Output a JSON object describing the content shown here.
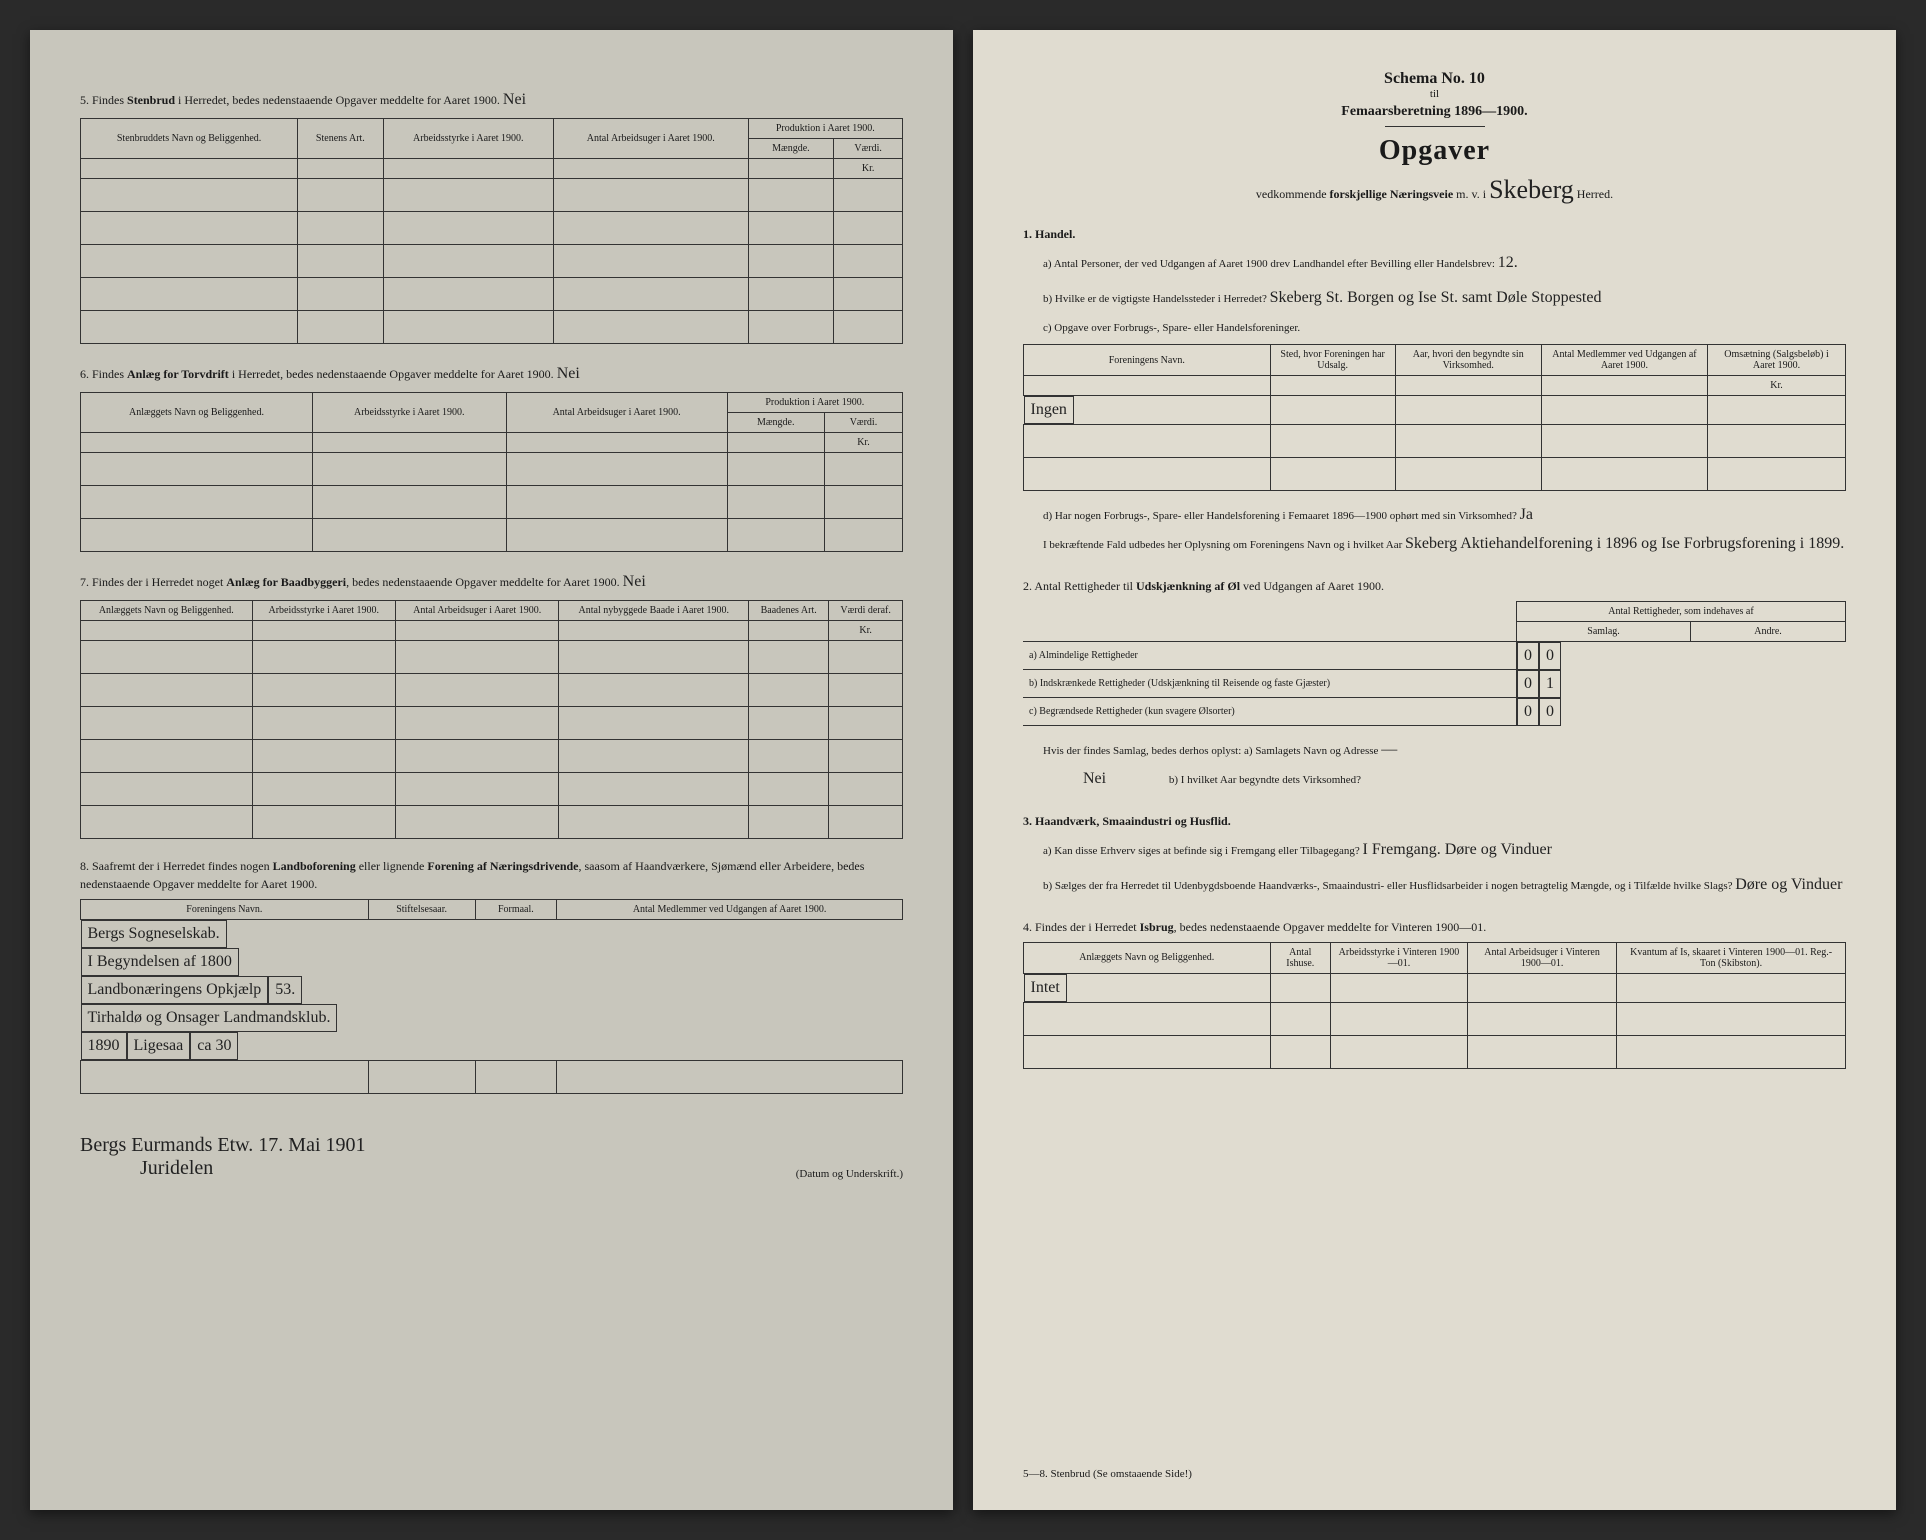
{
  "left": {
    "s5": {
      "text": "5.  Findes <b>Stenbrud</b> i Herredet, bedes nedenstaaende Opgaver meddelte for Aaret 1900.",
      "hand": "Nei",
      "tbl_sup": "Produktion i Aaret 1900.",
      "cols": [
        "Stenbruddets Navn og Beliggenhed.",
        "Stenens Art.",
        "Arbeidsstyrke i Aaret 1900.",
        "Antal Arbeidsuger i Aaret 1900.",
        "Mængde.",
        "Værdi."
      ],
      "unit": "Kr."
    },
    "s6": {
      "text": "6.  Findes <b>Anlæg for Torvdrift</b> i Herredet, bedes nedenstaaende Opgaver meddelte for Aaret 1900.",
      "hand": "Nei",
      "tbl_sup": "Produktion i Aaret 1900.",
      "cols": [
        "Anlæggets Navn og Beliggenhed.",
        "Arbeidsstyrke i Aaret 1900.",
        "Antal Arbeidsuger i Aaret 1900.",
        "Mængde.",
        "Værdi."
      ],
      "unit": "Kr."
    },
    "s7": {
      "text": "7.  Findes der i Herredet noget <b>Anlæg for Baadbyggeri</b>, bedes nedenstaaende Opgaver meddelte for Aaret 1900.",
      "hand": "Nei",
      "cols": [
        "Anlæggets Navn og Beliggenhed.",
        "Arbeidsstyrke i Aaret 1900.",
        "Antal Arbeidsuger i Aaret 1900.",
        "Antal nybyggede Baade i Aaret 1900.",
        "Baadenes Art.",
        "Værdi deraf."
      ],
      "unit": "Kr."
    },
    "s8": {
      "text": "8.  Saafremt der i Herredet findes nogen <b>Landboforening</b> eller lignende <b>Forening af Næringsdrivende</b>, saasom af Haandværkere, Sjømænd eller Arbeidere, bedes nedenstaaende Opgaver meddelte for Aaret 1900.",
      "cols": [
        "Foreningens Navn.",
        "Stiftelsesaar.",
        "Formaal.",
        "Antal Medlemmer ved Udgangen af Aaret 1900."
      ],
      "rows": [
        [
          "Bergs Sogneselskab.",
          "I Begyndelsen af 1800",
          "Landbonæringens Opkjælp",
          "53."
        ],
        [
          "Tirhaldø og Onsager Landmandsklub.",
          "1890",
          "Ligesaa",
          "ca 30"
        ]
      ]
    },
    "sig_left": "Bergs Eurmands Etw. 17. Mai 1901",
    "sig_left2": "Juridelen",
    "sig_right": "(Datum og Underskrift.)"
  },
  "right": {
    "schema": "Schema No. 10",
    "til": "til",
    "period": "Femaarsberetning 1896—1900.",
    "opgaver": "Opgaver",
    "sub": "vedkommende <b>forskjellige Næringsveie</b> m. v. i",
    "herred_hand": "Skeberg",
    "herred_suffix": "Herred.",
    "s1": {
      "title": "1.  Handel.",
      "a": "a)  Antal Personer, der ved Udgangen af Aaret 1900 drev Landhandel efter Bevilling eller Handelsbrev:",
      "a_hand": "12.",
      "b": "b)  Hvilke er de vigtigste Handelssteder i Herredet?",
      "b_hand": "Skeberg St. Borgen og Ise St. samt Døle Stoppested",
      "c": "c)  Opgave over Forbrugs-, Spare- eller Handelsforeninger.",
      "cols": [
        "Foreningens Navn.",
        "Sted, hvor Foreningen har Udsalg.",
        "Aar, hvori den begyndte sin Virksomhed.",
        "Antal Medlemmer ved Udgangen af Aaret 1900.",
        "Omsætning (Salgsbeløb) i Aaret 1900."
      ],
      "unit": "Kr.",
      "row1_hand": "Ingen",
      "d": "d)  Har nogen Forbrugs-, Spare- eller Handelsforening i Femaaret 1896—1900 ophørt med sin Virksomhed?",
      "d_hand": "Ja",
      "d2": "I bekræftende Fald udbedes her Oplysning om Foreningens Navn og i hvilket Aar",
      "d2_hand": "Skeberg Aktiehandelforening i 1896 og Ise Forbrugsforening i 1899."
    },
    "s2": {
      "title": "2.  Antal Rettigheder til <b>Udskjænkning af Øl</b> ved Udgangen af Aaret 1900.",
      "sup": "Antal Rettigheder, som indehaves af",
      "cols": [
        "Samlag.",
        "Andre."
      ],
      "rows": [
        {
          "label": "a)  Almindelige Rettigheder",
          "v": [
            "0",
            "0"
          ]
        },
        {
          "label": "b)  Indskrænkede Rettigheder (Udskjænkning til Reisende og faste Gjæster)",
          "v": [
            "0",
            "1"
          ]
        },
        {
          "label": "c)  Begrændsede Rettigheder (kun svagere Ølsorter)",
          "v": [
            "0",
            "0"
          ]
        }
      ],
      "q_samlag": "Hvis der findes Samlag, bedes derhos oplyst:  a)  Samlagets Navn og Adresse",
      "q_samlag_hand": "—",
      "q_nei": "Nei",
      "q_b": "b)  I hvilket Aar begyndte dets Virksomhed?"
    },
    "s3": {
      "title": "3.  Haandværk, Smaaindustri og Husflid.",
      "a": "a)  Kan disse Erhverv siges at befinde sig i Fremgang eller Tilbagegang?",
      "a_hand": "I Fremgang. Døre og Vinduer",
      "b": "b)  Sælges der fra Herredet til Udenbygdsboende Haandværks-, Smaaindustri- eller Husflidsarbeider i nogen betragtelig Mængde, og i Tilfælde hvilke Slags?",
      "b_hand": "Døre og Vinduer"
    },
    "s4": {
      "title": "4.  Findes der i Herredet <b>Isbrug</b>, bedes nedenstaaende Opgaver meddelte for Vinteren 1900—01.",
      "cols": [
        "Anlæggets Navn og Beliggenhed.",
        "Antal Ishuse.",
        "Arbeidsstyrke i Vinteren 1900—01.",
        "Antal Arbeidsuger i Vinteren 1900—01.",
        "Kvantum af Is, skaaret i Vinteren 1900—01. Reg.-Ton (Skibston)."
      ],
      "row1_hand": "Intet"
    },
    "footer": "5—8. Stenbrud  (Se omstaaende Side!)"
  }
}
